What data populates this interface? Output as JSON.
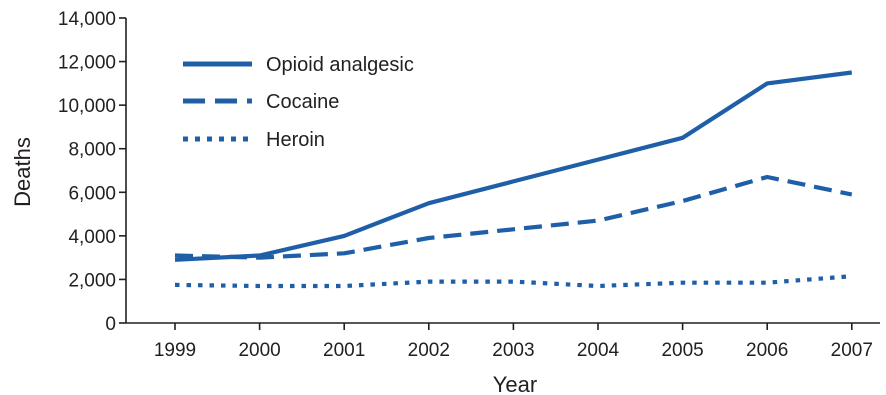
{
  "chart_data": {
    "type": "line",
    "xlabel": "Year",
    "ylabel": "Deaths",
    "x": [
      "1999",
      "2000",
      "2001",
      "2002",
      "2003",
      "2004",
      "2005",
      "2006",
      "2007"
    ],
    "ylim": [
      0,
      14000
    ],
    "yticks": [
      0,
      2000,
      4000,
      6000,
      8000,
      10000,
      12000,
      14000
    ],
    "ytick_labels": [
      "0",
      "2,000",
      "4,000",
      "6,000",
      "8,000",
      "10,000",
      "12,000",
      "14,000"
    ],
    "grid": false,
    "legend_position": "top-left",
    "series": [
      {
        "name": "Opioid analgesic",
        "style": "solid",
        "color": "#1f5fa8",
        "values": [
          2900,
          3100,
          4000,
          5500,
          6500,
          7500,
          8500,
          11000,
          11500
        ]
      },
      {
        "name": "Cocaine",
        "style": "dashed",
        "color": "#1f5fa8",
        "values": [
          3100,
          3000,
          3200,
          3900,
          4300,
          4700,
          5600,
          6700,
          5900
        ]
      },
      {
        "name": "Heroin",
        "style": "dotted",
        "color": "#1f5fa8",
        "values": [
          1750,
          1700,
          1700,
          1900,
          1900,
          1700,
          1850,
          1850,
          2150
        ]
      }
    ]
  }
}
